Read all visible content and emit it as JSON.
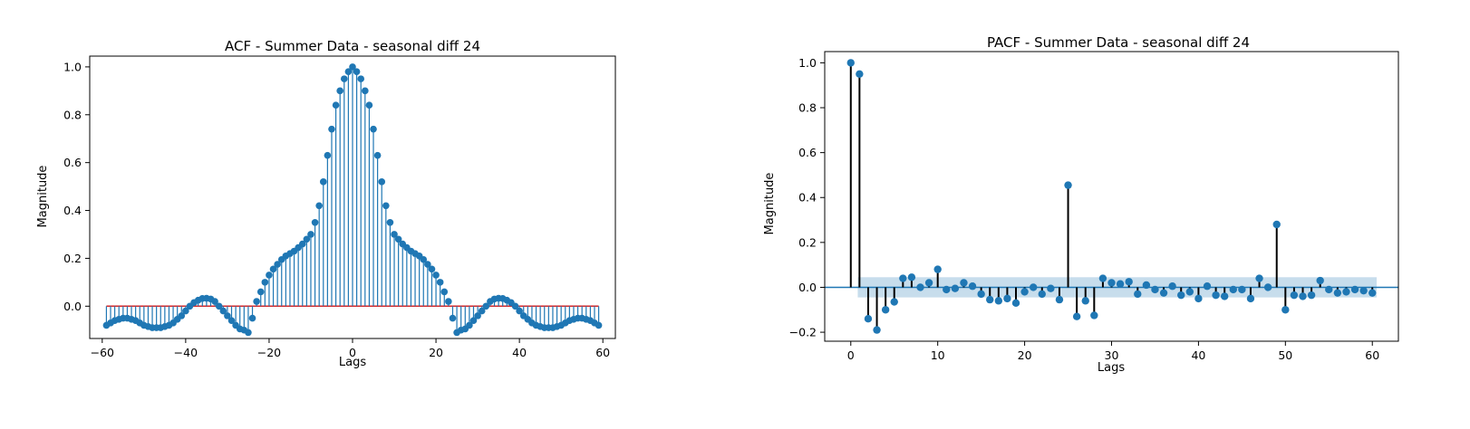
{
  "chart_data": [
    {
      "type": "stem",
      "title": "ACF - Summer Data - seasonal diff 24",
      "xlabel": "Lags",
      "ylabel": "Magnitude",
      "xlim": [
        -63,
        63
      ],
      "ylim": [
        -0.135,
        1.045
      ],
      "xticks": [
        -60,
        -40,
        -20,
        0,
        20,
        40,
        60
      ],
      "yticks": [
        0.0,
        0.2,
        0.4,
        0.6,
        0.8,
        1.0
      ],
      "ytick_labels": [
        "0.0",
        "0.2",
        "0.4",
        "0.6",
        "0.8",
        "1.0"
      ],
      "colors": {
        "stem": "#1f77b4",
        "baseline": "#d62728"
      },
      "lags": [
        -59,
        -58,
        -57,
        -56,
        -55,
        -54,
        -53,
        -52,
        -51,
        -50,
        -49,
        -48,
        -47,
        -46,
        -45,
        -44,
        -43,
        -42,
        -41,
        -40,
        -39,
        -38,
        -37,
        -36,
        -35,
        -34,
        -33,
        -32,
        -31,
        -30,
        -29,
        -28,
        -27,
        -26,
        -25,
        -24,
        -23,
        -22,
        -21,
        -20,
        -19,
        -18,
        -17,
        -16,
        -15,
        -14,
        -13,
        -12,
        -11,
        -10,
        -9,
        -8,
        -7,
        -6,
        -5,
        -4,
        -3,
        -2,
        -1,
        0,
        1,
        2,
        3,
        4,
        5,
        6,
        7,
        8,
        9,
        10,
        11,
        12,
        13,
        14,
        15,
        16,
        17,
        18,
        19,
        20,
        21,
        22,
        23,
        24,
        25,
        26,
        27,
        28,
        29,
        30,
        31,
        32,
        33,
        34,
        35,
        36,
        37,
        38,
        39,
        40,
        41,
        42,
        43,
        44,
        45,
        46,
        47,
        48,
        49,
        50,
        51,
        52,
        53,
        54,
        55,
        56,
        57,
        58,
        59
      ],
      "values": [
        -0.08,
        -0.07,
        -0.06,
        -0.055,
        -0.05,
        -0.05,
        -0.055,
        -0.06,
        -0.07,
        -0.08,
        -0.085,
        -0.09,
        -0.09,
        -0.09,
        -0.085,
        -0.08,
        -0.07,
        -0.055,
        -0.04,
        -0.02,
        0.0,
        0.015,
        0.025,
        0.032,
        0.033,
        0.03,
        0.02,
        0.0,
        -0.02,
        -0.04,
        -0.06,
        -0.08,
        -0.095,
        -0.1,
        -0.11,
        -0.05,
        0.02,
        0.06,
        0.1,
        0.13,
        0.155,
        0.175,
        0.195,
        0.21,
        0.22,
        0.23,
        0.245,
        0.26,
        0.28,
        0.3,
        0.35,
        0.42,
        0.52,
        0.63,
        0.74,
        0.84,
        0.9,
        0.95,
        0.98,
        1.0,
        0.98,
        0.95,
        0.9,
        0.84,
        0.74,
        0.63,
        0.52,
        0.42,
        0.35,
        0.3,
        0.28,
        0.26,
        0.245,
        0.23,
        0.22,
        0.21,
        0.195,
        0.175,
        0.155,
        0.13,
        0.1,
        0.06,
        0.02,
        -0.05,
        -0.11,
        -0.1,
        -0.095,
        -0.08,
        -0.06,
        -0.04,
        -0.02,
        0.0,
        0.02,
        0.03,
        0.033,
        0.032,
        0.025,
        0.015,
        0.0,
        -0.02,
        -0.04,
        -0.055,
        -0.07,
        -0.08,
        -0.085,
        -0.09,
        -0.09,
        -0.09,
        -0.085,
        -0.08,
        -0.07,
        -0.06,
        -0.055,
        -0.05,
        -0.05,
        -0.055,
        -0.06,
        -0.07,
        -0.08
      ]
    },
    {
      "type": "stem",
      "title": "PACF - Summer Data  - seasonal diff 24",
      "xlabel": "Lags",
      "ylabel": "Magnitude",
      "xlim": [
        -3,
        63
      ],
      "ylim": [
        -0.24,
        1.05
      ],
      "xticks": [
        0,
        10,
        20,
        30,
        40,
        50,
        60
      ],
      "yticks": [
        -0.2,
        0.0,
        0.2,
        0.4,
        0.6,
        0.8,
        1.0
      ],
      "ytick_labels": [
        "−0.2",
        "0.0",
        "0.2",
        "0.4",
        "0.6",
        "0.8",
        "1.0"
      ],
      "confidence_band": [
        -0.045,
        0.045
      ],
      "colors": {
        "stem": "#000000",
        "marker": "#1f77b4",
        "baseline": "#1f77b4",
        "band": "#1f77b4"
      },
      "lags": [
        0,
        1,
        2,
        3,
        4,
        5,
        6,
        7,
        8,
        9,
        10,
        11,
        12,
        13,
        14,
        15,
        16,
        17,
        18,
        19,
        20,
        21,
        22,
        23,
        24,
        25,
        26,
        27,
        28,
        29,
        30,
        31,
        32,
        33,
        34,
        35,
        36,
        37,
        38,
        39,
        40,
        41,
        42,
        43,
        44,
        45,
        46,
        47,
        48,
        49,
        50,
        51,
        52,
        53,
        54,
        55,
        56,
        57,
        58,
        59,
        60
      ],
      "values": [
        1.0,
        0.95,
        -0.14,
        -0.19,
        -0.1,
        -0.065,
        0.04,
        0.045,
        0.0,
        0.02,
        0.08,
        -0.01,
        -0.005,
        0.02,
        0.005,
        -0.03,
        -0.055,
        -0.06,
        -0.05,
        -0.07,
        -0.02,
        0.0,
        -0.03,
        -0.005,
        -0.055,
        0.455,
        -0.13,
        -0.06,
        -0.125,
        0.04,
        0.02,
        0.015,
        0.025,
        -0.03,
        0.01,
        -0.01,
        -0.025,
        0.005,
        -0.035,
        -0.02,
        -0.05,
        0.005,
        -0.035,
        -0.04,
        -0.01,
        -0.01,
        -0.05,
        0.04,
        0.0,
        0.28,
        -0.1,
        -0.035,
        -0.04,
        -0.035,
        0.03,
        -0.01,
        -0.025,
        -0.02,
        -0.01,
        -0.015,
        -0.025
      ]
    }
  ]
}
